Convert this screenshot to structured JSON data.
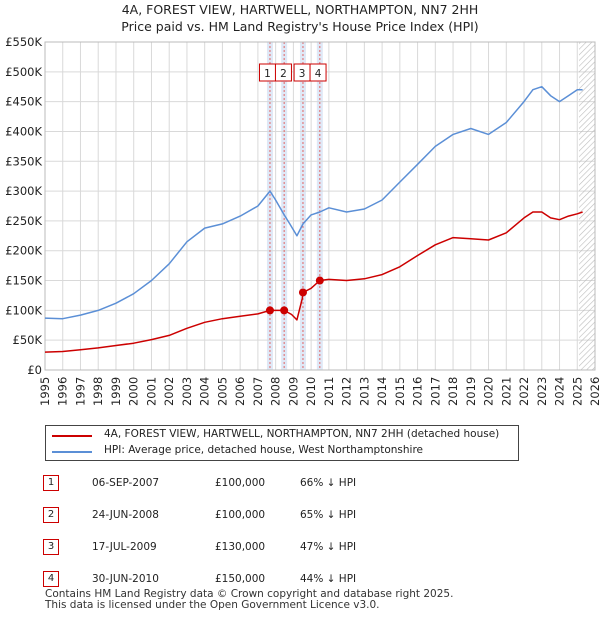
{
  "header": {
    "title": "4A, FOREST VIEW, HARTWELL, NORTHAMPTON, NN7 2HH",
    "subtitle": "Price paid vs. HM Land Registry's House Price Index (HPI)"
  },
  "colors": {
    "property": "#cc0000",
    "hpi": "#5b8fd6",
    "band": "#dce6f5",
    "grid": "#d9d9d9"
  },
  "chart_data": {
    "type": "line",
    "title": "4A, FOREST VIEW, HARTWELL, NORTHAMPTON, NN7 2HH",
    "xlim": [
      1995,
      2026
    ],
    "ylim": [
      0,
      550000
    ],
    "y_ticks": [
      {
        "value": 0,
        "label": "£0"
      },
      {
        "value": 50000,
        "label": "£50K"
      },
      {
        "value": 100000,
        "label": "£100K"
      },
      {
        "value": 150000,
        "label": "£150K"
      },
      {
        "value": 200000,
        "label": "£200K"
      },
      {
        "value": 250000,
        "label": "£250K"
      },
      {
        "value": 300000,
        "label": "£300K"
      },
      {
        "value": 350000,
        "label": "£350K"
      },
      {
        "value": 400000,
        "label": "£400K"
      },
      {
        "value": 450000,
        "label": "£450K"
      },
      {
        "value": 500000,
        "label": "£500K"
      },
      {
        "value": 550000,
        "label": "£550K"
      }
    ],
    "x_ticks": [
      "1995",
      "1996",
      "1997",
      "1998",
      "1999",
      "2000",
      "2001",
      "2002",
      "2003",
      "2004",
      "2005",
      "2006",
      "2007",
      "2008",
      "2009",
      "2010",
      "2011",
      "2012",
      "2013",
      "2014",
      "2015",
      "2016",
      "2017",
      "2018",
      "2019",
      "2020",
      "2021",
      "2022",
      "2023",
      "2024",
      "2025",
      "2026"
    ],
    "forecast_start": 2025.1,
    "series": [
      {
        "name": "4A, FOREST VIEW, HARTWELL, NORTHAMPTON, NN7 2HH (detached house)",
        "x": [
          1995,
          1996,
          1997,
          1998,
          1999,
          2000,
          2001,
          2002,
          2003,
          2004,
          2005,
          2006,
          2007,
          2007.68,
          2008,
          2008.48,
          2008.9,
          2009.2,
          2009.5,
          2009.54,
          2010,
          2010.49,
          2011,
          2012,
          2013,
          2014,
          2015,
          2016,
          2017,
          2018,
          2019,
          2020,
          2021,
          2022,
          2022.5,
          2023,
          2023.5,
          2024,
          2024.5,
          2025,
          2025.3
        ],
        "values": [
          30000,
          31000,
          34000,
          37000,
          41000,
          45000,
          51000,
          58000,
          70000,
          80000,
          86000,
          90000,
          94000,
          100000,
          100000,
          100000,
          93000,
          84000,
          120000,
          130000,
          137000,
          150000,
          152000,
          150000,
          153000,
          160000,
          173000,
          192000,
          210000,
          222000,
          220000,
          218000,
          230000,
          255000,
          265000,
          265000,
          255000,
          252000,
          258000,
          262000,
          265000
        ]
      },
      {
        "name": "HPI: Average price, detached house, West Northamptonshire",
        "x": [
          1995,
          1996,
          1997,
          1998,
          1999,
          2000,
          2001,
          2002,
          2003,
          2004,
          2005,
          2006,
          2007,
          2007.68,
          2008,
          2008.48,
          2008.8,
          2009.2,
          2009.54,
          2010,
          2010.49,
          2011,
          2012,
          2013,
          2014,
          2015,
          2016,
          2017,
          2018,
          2019,
          2020,
          2021,
          2022,
          2022.5,
          2023,
          2023.5,
          2024,
          2024.5,
          2025,
          2025.3
        ],
        "values": [
          87000,
          86000,
          92000,
          100000,
          112000,
          128000,
          150000,
          178000,
          215000,
          238000,
          245000,
          258000,
          275000,
          300000,
          285000,
          260000,
          245000,
          225000,
          245000,
          260000,
          265000,
          272000,
          265000,
          270000,
          285000,
          315000,
          345000,
          375000,
          395000,
          405000,
          395000,
          415000,
          450000,
          470000,
          475000,
          460000,
          450000,
          460000,
          470000,
          470000
        ]
      }
    ],
    "sales": [
      {
        "id": "1",
        "x": 2007.68,
        "value": 100000,
        "label_x": 2007.54
      },
      {
        "id": "2",
        "x": 2008.48,
        "value": 100000,
        "label_x": 2008.44
      },
      {
        "id": "3",
        "x": 2009.54,
        "value": 130000,
        "label_x": 2009.49
      },
      {
        "id": "4",
        "x": 2010.49,
        "value": 150000,
        "label_x": 2010.39
      }
    ]
  },
  "legend": {
    "property_label": "4A, FOREST VIEW, HARTWELL, NORTHAMPTON, NN7 2HH (detached house)",
    "hpi_label": "HPI: Average price, detached house, West Northamptonshire"
  },
  "sales_table": [
    {
      "num": "1",
      "date": "06-SEP-2007",
      "price": "£100,000",
      "hpi": "66% ↓ HPI"
    },
    {
      "num": "2",
      "date": "24-JUN-2008",
      "price": "£100,000",
      "hpi": "65% ↓ HPI"
    },
    {
      "num": "3",
      "date": "17-JUL-2009",
      "price": "£130,000",
      "hpi": "47% ↓ HPI"
    },
    {
      "num": "4",
      "date": "30-JUN-2010",
      "price": "£150,000",
      "hpi": "44% ↓ HPI"
    }
  ],
  "footer": {
    "line1": "Contains HM Land Registry data © Crown copyright and database right 2025.",
    "line2": "This data is licensed under the Open Government Licence v3.0."
  }
}
